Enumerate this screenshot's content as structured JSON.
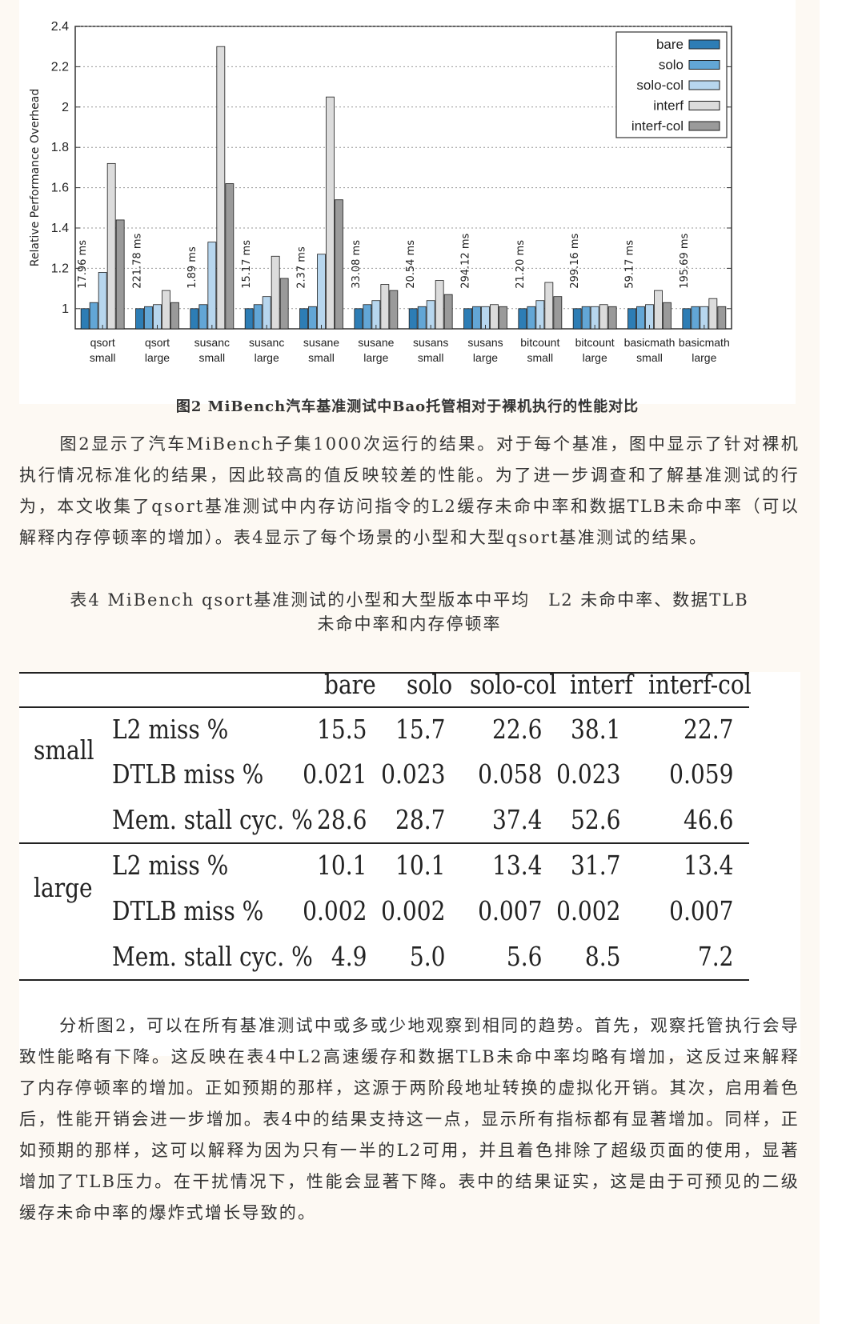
{
  "figure": {
    "caption": "图2 MiBench汽车基准测试中Bao托管相对于裸机执行的性能对比"
  },
  "chart_data": {
    "type": "bar",
    "ylabel": "Relative Performance Overhead",
    "xlabel": "",
    "ylim": [
      0.9,
      2.4
    ],
    "yticks": [
      1,
      1.2,
      1.4,
      1.6,
      1.8,
      2,
      2.2,
      2.4
    ],
    "ytick_labels": [
      "1",
      "1.2",
      "1.4",
      "1.6",
      "1.8",
      "2",
      "2.2",
      "2.4"
    ],
    "legend_position": "top-right",
    "grid": true,
    "categories": [
      [
        "qsort",
        "small"
      ],
      [
        "qsort",
        "large"
      ],
      [
        "susanc",
        "small"
      ],
      [
        "susanc",
        "large"
      ],
      [
        "susane",
        "small"
      ],
      [
        "susane",
        "large"
      ],
      [
        "susans",
        "small"
      ],
      [
        "susans",
        "large"
      ],
      [
        "bitcount",
        "small"
      ],
      [
        "bitcount",
        "large"
      ],
      [
        "basicmath",
        "small"
      ],
      [
        "basicmath",
        "large"
      ]
    ],
    "baseline_labels": [
      "17.96 ms",
      "221.78 ms",
      "1.89 ms",
      "15.17 ms",
      "2.37 ms",
      "33.08 ms",
      "20.54 ms",
      "294.12 ms",
      "21.20 ms",
      "299.16 ms",
      "59.17 ms",
      "195.69 ms"
    ],
    "series": [
      {
        "name": "bare",
        "color": "#2d7db5",
        "values": [
          1.0,
          1.0,
          1.0,
          1.0,
          1.0,
          1.0,
          1.0,
          1.0,
          1.0,
          1.0,
          1.0,
          1.0
        ]
      },
      {
        "name": "solo",
        "color": "#62a6d6",
        "values": [
          1.03,
          1.01,
          1.02,
          1.02,
          1.01,
          1.02,
          1.01,
          1.01,
          1.01,
          1.01,
          1.01,
          1.01
        ]
      },
      {
        "name": "solo-col",
        "color": "#b7d6ee",
        "values": [
          1.18,
          1.02,
          1.33,
          1.06,
          1.27,
          1.04,
          1.04,
          1.01,
          1.04,
          1.01,
          1.02,
          1.01
        ]
      },
      {
        "name": "interf",
        "color": "#dcdcdc",
        "values": [
          1.72,
          1.09,
          2.3,
          1.26,
          2.05,
          1.12,
          1.14,
          1.02,
          1.13,
          1.02,
          1.09,
          1.05
        ]
      },
      {
        "name": "interf-col",
        "color": "#9a9a9a",
        "values": [
          1.44,
          1.03,
          1.62,
          1.15,
          1.54,
          1.09,
          1.07,
          1.01,
          1.06,
          1.01,
          1.03,
          1.01
        ]
      }
    ]
  },
  "paragraph1": "图2显示了汽车MiBench子集1000次运行的结果。对于每个基准，图中显示了针对裸机执行情况标准化的结果，因此较高的值反映较差的性能。为了进一步调查和了解基准测试的行为，本文收集了qsort基准测试中内存访问指令的L2缓存未命中率和数据TLB未命中率（可以解释内存停顿率的增加）。表4显示了每个场景的小型和大型qsort基准测试的结果。",
  "table_caption_line1": "表4 MiBench qsort基准测试的小型和大型版本中平均　L2 未命中率、数据TLB",
  "table_caption_line2": "未命中率和内存停顿率",
  "table": {
    "headers": [
      "bare",
      "solo",
      "solo-col",
      "interf",
      "interf-col"
    ],
    "groups": [
      {
        "label": "small",
        "rows": [
          {
            "metric": "L2 miss %",
            "values": [
              "15.5",
              "15.7",
              "22.6",
              "38.1",
              "22.7"
            ]
          },
          {
            "metric": "DTLB miss %",
            "values": [
              "0.021",
              "0.023",
              "0.058",
              "0.023",
              "0.059"
            ]
          },
          {
            "metric": "Mem. stall cyc. %",
            "values": [
              "28.6",
              "28.7",
              "37.4",
              "52.6",
              "46.6"
            ]
          }
        ]
      },
      {
        "label": "large",
        "rows": [
          {
            "metric": "L2 miss %",
            "values": [
              "10.1",
              "10.1",
              "13.4",
              "31.7",
              "13.4"
            ]
          },
          {
            "metric": "DTLB miss %",
            "values": [
              "0.002",
              "0.002",
              "0.007",
              "0.002",
              "0.007"
            ]
          },
          {
            "metric": "Mem. stall cyc. %",
            "values": [
              "4.9",
              "5.0",
              "5.6",
              "8.5",
              "7.2"
            ]
          }
        ]
      }
    ]
  },
  "paragraph2": "分析图2，可以在所有基准测试中或多或少地观察到相同的趋势。首先，观察托管执行会导致性能略有下降。这反映在表4中L2高速缓存和数据TLB未命中率均略有增加，这反过来解释了内存停顿率的增加。正如预期的那样，这源于两阶段地址转换的虚拟化开销。其次，启用着色后，性能开销会进一步增加。表4中的结果支持这一点，显示所有指标都有显著增加。同样，正如预期的那样，这可以解释为因为只有一半的L2可用，并且着色排除了超级页面的使用，显著增加了TLB压力。在干扰情况下，性能会显著下降。表中的结果证实，这是由于可预见的二级缓存未命中率的爆炸式增长导致的。"
}
